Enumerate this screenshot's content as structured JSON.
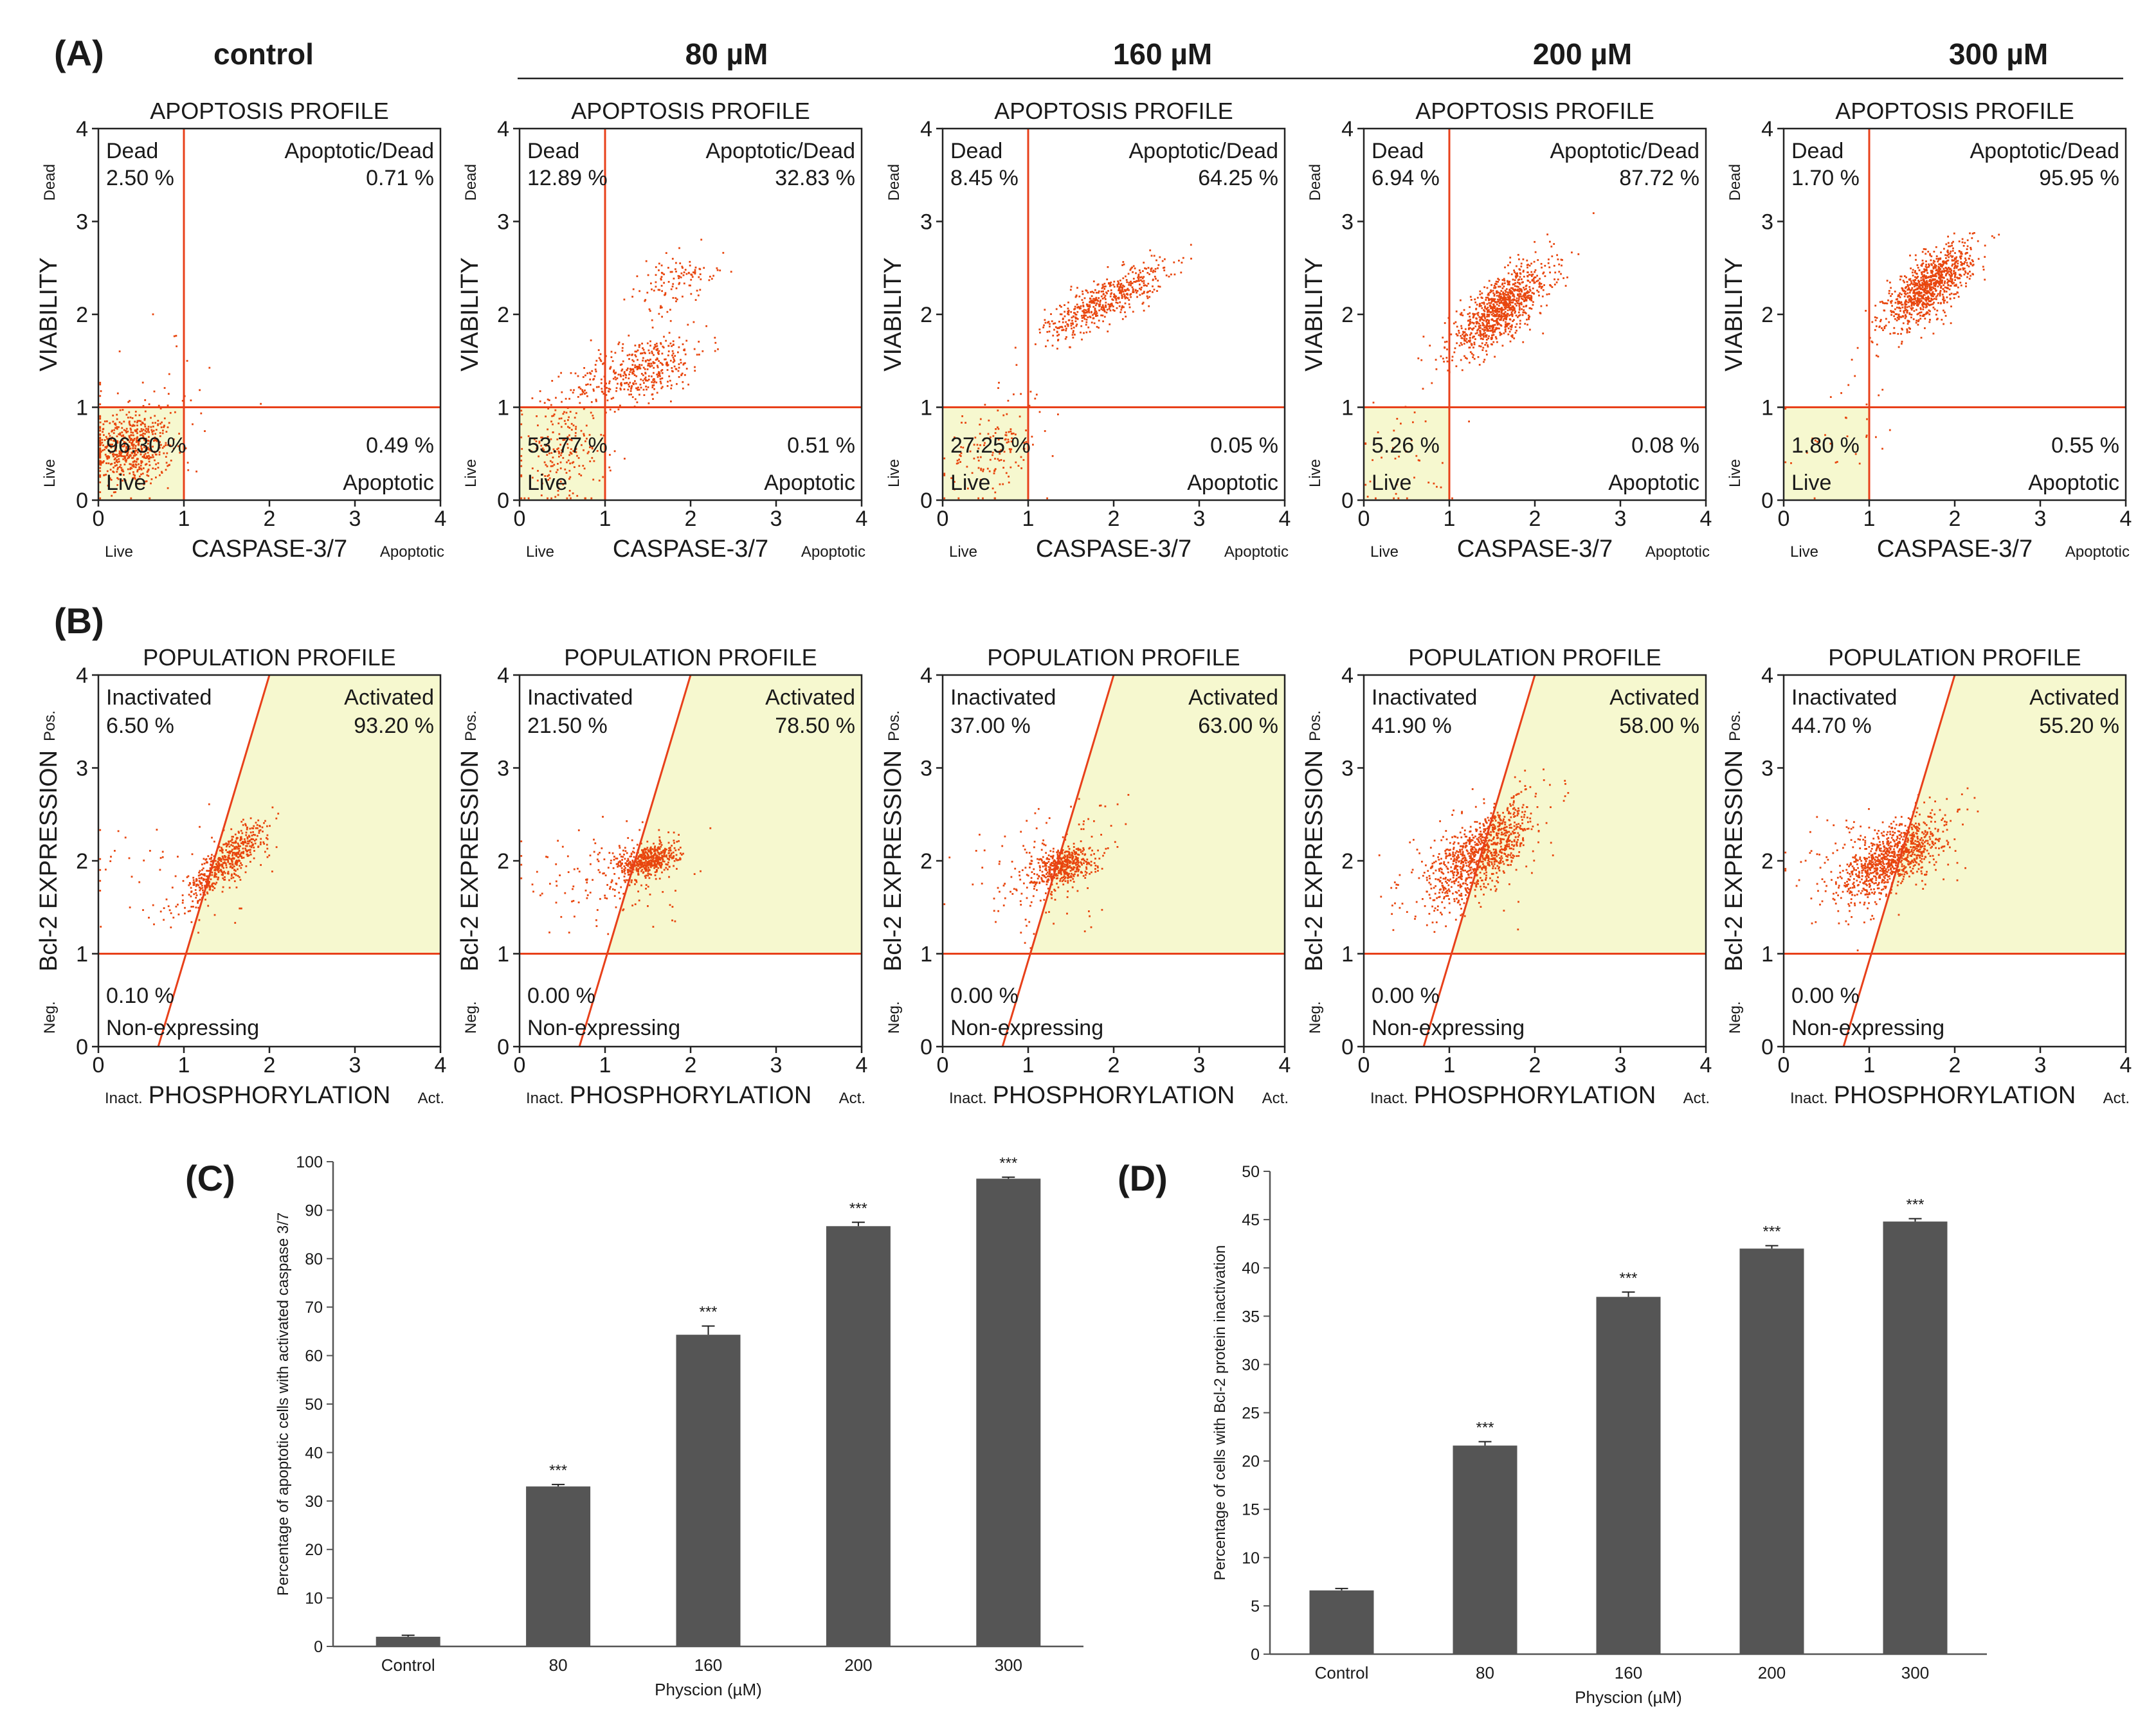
{
  "figure": {
    "panel_labels": [
      "(A)",
      "(B)",
      "(C)",
      "(D)"
    ],
    "column_headers": [
      "control",
      "80 µM",
      "160 µM",
      "200 µM",
      "300 µM"
    ]
  },
  "colors": {
    "dot": "#e8460e",
    "gate_line": "#e8401a",
    "region_fill": "#f6f8cf",
    "bar": "#555555",
    "text": "#1a1a1a"
  },
  "chart_data": [
    {
      "panel": "A",
      "type": "scatter",
      "title": "APOPTOSIS PROFILE",
      "xlabel": "CASPASE-3/7",
      "x_end_labels": [
        "Live",
        "Apoptotic"
      ],
      "ylabel": "VIABILITY",
      "y_end_labels": [
        "Live",
        "Dead"
      ],
      "xlim": [
        0,
        4
      ],
      "ylim": [
        0,
        4
      ],
      "ticks": [
        0,
        1,
        2,
        3,
        4
      ],
      "gates": {
        "x": 1,
        "y": 1
      },
      "quadrant_names": {
        "top_left": "Dead",
        "top_right": "Apoptotic/Dead",
        "bottom_left": "Live",
        "bottom_right": "Apoptotic"
      },
      "plots": [
        {
          "condition": "control",
          "dead": "2.50 %",
          "apoptotic_dead": "0.71 %",
          "live": "96.30 %",
          "apoptotic": "0.49 %"
        },
        {
          "condition": "80 µM",
          "dead": "12.89 %",
          "apoptotic_dead": "32.83 %",
          "live": "53.77 %",
          "apoptotic": "0.51 %"
        },
        {
          "condition": "160 µM",
          "dead": "8.45 %",
          "apoptotic_dead": "64.25 %",
          "live": "27.25 %",
          "apoptotic": "0.05 %"
        },
        {
          "condition": "200 µM",
          "dead": "6.94 %",
          "apoptotic_dead": "87.72 %",
          "live": "5.26 %",
          "apoptotic": "0.08 %"
        },
        {
          "condition": "300 µM",
          "dead": "1.70 %",
          "apoptotic_dead": "95.95 %",
          "live": "1.80 %",
          "apoptotic": "0.55 %"
        }
      ]
    },
    {
      "panel": "B",
      "type": "scatter",
      "title": "POPULATION PROFILE",
      "xlabel": "PHOSPHORYLATION",
      "x_end_labels": [
        "Inact.",
        "Act."
      ],
      "ylabel": "Bcl-2 EXPRESSION",
      "y_end_labels": [
        "Neg.",
        "Pos."
      ],
      "xlim": [
        0,
        4
      ],
      "ylim": [
        0,
        4
      ],
      "ticks": [
        0,
        1,
        2,
        3,
        4
      ],
      "gates": {
        "y": 1,
        "diagonal": [
          [
            0.7,
            0
          ],
          [
            2.0,
            4.0
          ]
        ]
      },
      "region_names": {
        "inactivated": "Inactivated",
        "activated": "Activated",
        "non_expressing": "Non-expressing"
      },
      "plots": [
        {
          "condition": "control",
          "inactivated": "6.50 %",
          "activated": "93.20 %",
          "non_expressing": "0.10 %"
        },
        {
          "condition": "80 µM",
          "inactivated": "21.50 %",
          "activated": "78.50 %",
          "non_expressing": "0.00 %"
        },
        {
          "condition": "160 µM",
          "inactivated": "37.00 %",
          "activated": "63.00 %",
          "non_expressing": "0.00 %"
        },
        {
          "condition": "200 µM",
          "inactivated": "41.90 %",
          "activated": "58.00 %",
          "non_expressing": "0.00 %"
        },
        {
          "condition": "300 µM",
          "inactivated": "44.70 %",
          "activated": "55.20 %",
          "non_expressing": "0.00 %"
        }
      ]
    },
    {
      "panel": "C",
      "type": "bar",
      "categories": [
        "Control",
        "80",
        "160",
        "200",
        "300"
      ],
      "values": [
        2,
        33,
        64.3,
        86.7,
        96.5
      ],
      "errors": [
        0.3,
        0.4,
        1.8,
        0.8,
        0.3
      ],
      "annotations": [
        "",
        "***",
        "***",
        "***",
        "***"
      ],
      "xlabel": "Physcion (µM)",
      "ylabel": "Percentage of apoptotic cells with activated caspase 3/7",
      "ylim": [
        0,
        100
      ],
      "yticks": [
        0,
        10,
        20,
        30,
        40,
        50,
        60,
        70,
        80,
        90,
        100
      ]
    },
    {
      "panel": "D",
      "type": "bar",
      "categories": [
        "Control",
        "80",
        "160",
        "200",
        "300"
      ],
      "values": [
        6.6,
        21.6,
        37,
        42,
        44.8
      ],
      "errors": [
        0.2,
        0.4,
        0.5,
        0.3,
        0.3
      ],
      "annotations": [
        "",
        "***",
        "***",
        "***",
        "***"
      ],
      "xlabel": "Physcion (µM)",
      "ylabel": "Percentage of cells with Bcl-2 protein inactivation",
      "ylim": [
        0,
        50
      ],
      "yticks": [
        0,
        5,
        10,
        15,
        20,
        25,
        30,
        35,
        40,
        45,
        50
      ]
    }
  ]
}
